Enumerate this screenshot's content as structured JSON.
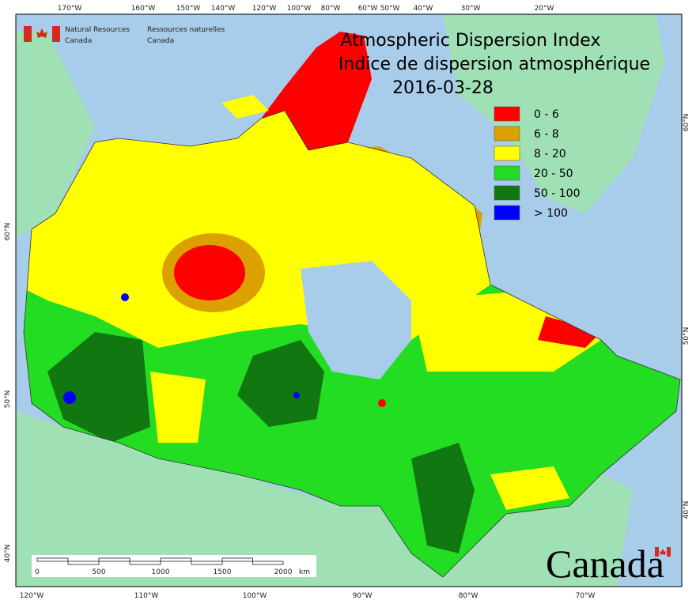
{
  "header": {
    "agency_en": [
      "Natural Resources",
      "Canada"
    ],
    "agency_fr": [
      "Ressources naturelles",
      "Canada"
    ]
  },
  "title": {
    "line1": "Atmospheric Dispersion Index",
    "line2": "Indice de dispersion atmosphérique",
    "date": "2016-03-28"
  },
  "legend": [
    {
      "label": "0 - 6",
      "color": "#ff0000"
    },
    {
      "label": "6 - 8",
      "color": "#dca000"
    },
    {
      "label": "8 - 20",
      "color": "#ffff00"
    },
    {
      "label": "20 - 50",
      "color": "#22dd22"
    },
    {
      "label": "50 - 100",
      "color": "#117711"
    },
    {
      "label": "> 100",
      "color": "#0000ff"
    }
  ],
  "graticule": {
    "top": [
      "170°W",
      "160°W",
      "150°W",
      "140°W",
      "120°W",
      "100°W",
      "80°W",
      "60°W",
      "50°W",
      "40°W",
      "30°W",
      "20°W"
    ],
    "bottom": [
      "120°W",
      "110°W",
      "100°W",
      "90°W",
      "80°W",
      "70°W"
    ],
    "left": [
      "60°N",
      "50°N",
      "40°N"
    ],
    "right": [
      "60°N",
      "50°N",
      "40°N"
    ]
  },
  "scale_bar": {
    "ticks": [
      "0",
      "500",
      "1000",
      "1500",
      "2000"
    ],
    "unit": "km"
  },
  "wordmark": "Canada"
}
